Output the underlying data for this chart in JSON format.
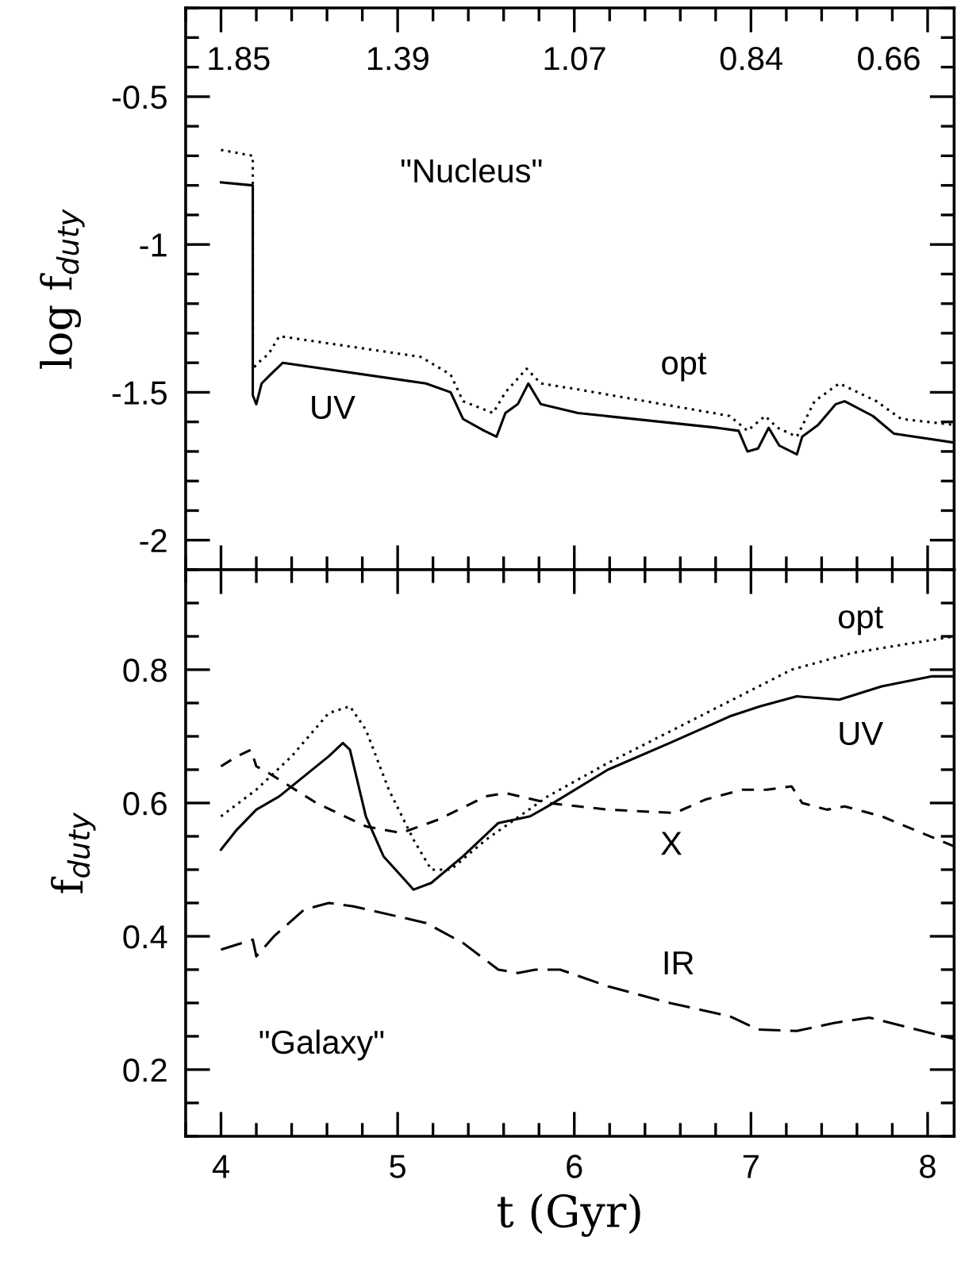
{
  "chart_data": [
    {
      "type": "line",
      "ylabel": "log f$_{duty}$",
      "xlim": [
        3.8,
        8.15
      ],
      "ylim": [
        -2.1,
        -0.2
      ],
      "yticks": [
        -2,
        {
          "value": -1.5,
          "label": "-1.5"
        },
        {
          "value": -1,
          "label": "-1"
        },
        {
          "value": -0.5,
          "label": "-0.5"
        }
      ],
      "tick_labels": "y",
      "grid": false,
      "series": [
        {
          "color": "#000000",
          "line_style": "solid",
          "x": [
            4.0,
            4.18,
            4.18,
            4.2,
            4.23,
            4.28,
            4.35,
            5.16,
            5.3,
            5.37,
            5.49,
            5.56,
            5.61,
            5.68,
            5.74,
            5.81,
            6.02,
            6.81,
            6.93,
            6.98,
            7.04,
            7.1,
            7.16,
            7.26,
            7.29,
            7.38,
            7.48,
            7.53,
            7.69,
            7.81,
            8.15
          ],
          "values": [
            -0.79,
            -0.8,
            -1.51,
            -1.54,
            -1.47,
            -1.44,
            -1.4,
            -1.47,
            -1.5,
            -1.59,
            -1.63,
            -1.65,
            -1.57,
            -1.54,
            -1.47,
            -1.54,
            -1.57,
            -1.62,
            -1.63,
            -1.7,
            -1.69,
            -1.62,
            -1.68,
            -1.71,
            -1.65,
            -1.61,
            -1.54,
            -1.53,
            -1.58,
            -1.64,
            -1.67
          ]
        },
        {
          "color": "#000000",
          "line_style": "dotted",
          "x": [
            4.0,
            4.18,
            4.18,
            4.21,
            4.27,
            4.33,
            5.13,
            5.3,
            5.37,
            5.54,
            5.61,
            5.73,
            5.81,
            6.02,
            6.88,
            6.98,
            7.08,
            7.15,
            7.26,
            7.36,
            7.5,
            7.71,
            7.85,
            8.15
          ],
          "values": [
            -0.68,
            -0.7,
            -1.42,
            -1.4,
            -1.37,
            -1.31,
            -1.38,
            -1.44,
            -1.53,
            -1.57,
            -1.5,
            -1.42,
            -1.47,
            -1.49,
            -1.58,
            -1.63,
            -1.58,
            -1.62,
            -1.65,
            -1.53,
            -1.47,
            -1.53,
            -1.59,
            -1.61
          ]
        }
      ],
      "annotations": [
        "1.85",
        "1.39",
        "1.07",
        "0.84",
        "0.66",
        "\"Nucleus\"",
        "opt",
        "UV"
      ]
    },
    {
      "type": "line",
      "xlabel": "t (Gyr)",
      "ylabel": "f$_{duty}$",
      "xlim": [
        3.8,
        8.15
      ],
      "xticks": [
        4,
        5,
        6,
        7,
        8
      ],
      "ylim": [
        0.1,
        0.95
      ],
      "yticks": [
        0.2,
        0.4,
        0.6,
        0.8
      ],
      "grid": false,
      "series": [
        {
          "color": "#000000",
          "line_style": "solid",
          "x": [
            4.0,
            4.09,
            4.2,
            4.33,
            4.47,
            4.61,
            4.69,
            4.73,
            4.82,
            4.92,
            5.09,
            5.19,
            5.37,
            5.57,
            5.75,
            5.85,
            6.19,
            6.54,
            6.88,
            7.05,
            7.26,
            7.5,
            7.74,
            8.02,
            8.15
          ],
          "values": [
            0.53,
            0.56,
            0.59,
            0.61,
            0.64,
            0.67,
            0.69,
            0.68,
            0.58,
            0.52,
            0.47,
            0.48,
            0.52,
            0.57,
            0.58,
            0.595,
            0.65,
            0.69,
            0.73,
            0.745,
            0.76,
            0.755,
            0.775,
            0.79,
            0.79
          ]
        },
        {
          "color": "#000000",
          "line_style": "dotted",
          "x": [
            4.0,
            4.2,
            4.4,
            4.61,
            4.73,
            4.82,
            4.95,
            5.09,
            5.19,
            5.3,
            5.5,
            5.85,
            6.19,
            6.71,
            7.23,
            7.57,
            8.15
          ],
          "values": [
            0.58,
            0.62,
            0.67,
            0.735,
            0.745,
            0.71,
            0.62,
            0.545,
            0.5,
            0.5,
            0.545,
            0.61,
            0.66,
            0.73,
            0.8,
            0.825,
            0.85
          ]
        },
        {
          "color": "#000000",
          "line_style": "dashed",
          "x": [
            4.0,
            4.09,
            4.17,
            4.2,
            4.27,
            4.54,
            4.82,
            5.02,
            5.23,
            5.5,
            5.61,
            5.85,
            6.19,
            6.57,
            6.74,
            6.95,
            7.09,
            7.23,
            7.29,
            7.43,
            7.53,
            7.74,
            8.15
          ],
          "values": [
            0.655,
            0.67,
            0.68,
            0.655,
            0.645,
            0.6,
            0.565,
            0.555,
            0.575,
            0.61,
            0.615,
            0.6,
            0.59,
            0.585,
            0.605,
            0.62,
            0.62,
            0.625,
            0.6,
            0.59,
            0.595,
            0.58,
            0.535
          ]
        },
        {
          "color": "#000000",
          "line_style": "dashed",
          "x": [
            4.0,
            4.18,
            4.2,
            4.3,
            4.47,
            4.61,
            4.75,
            5.16,
            5.37,
            5.57,
            5.68,
            5.78,
            5.92,
            6.19,
            6.54,
            6.88,
            7.04,
            7.26,
            7.47,
            7.67,
            8.15
          ],
          "values": [
            0.38,
            0.395,
            0.37,
            0.4,
            0.44,
            0.45,
            0.445,
            0.42,
            0.39,
            0.35,
            0.345,
            0.35,
            0.35,
            0.325,
            0.3,
            0.28,
            0.26,
            0.258,
            0.27,
            0.278,
            0.246
          ]
        }
      ],
      "annotations": [
        "opt",
        "UV",
        "X",
        "IR",
        "\"Galaxy\""
      ]
    }
  ]
}
